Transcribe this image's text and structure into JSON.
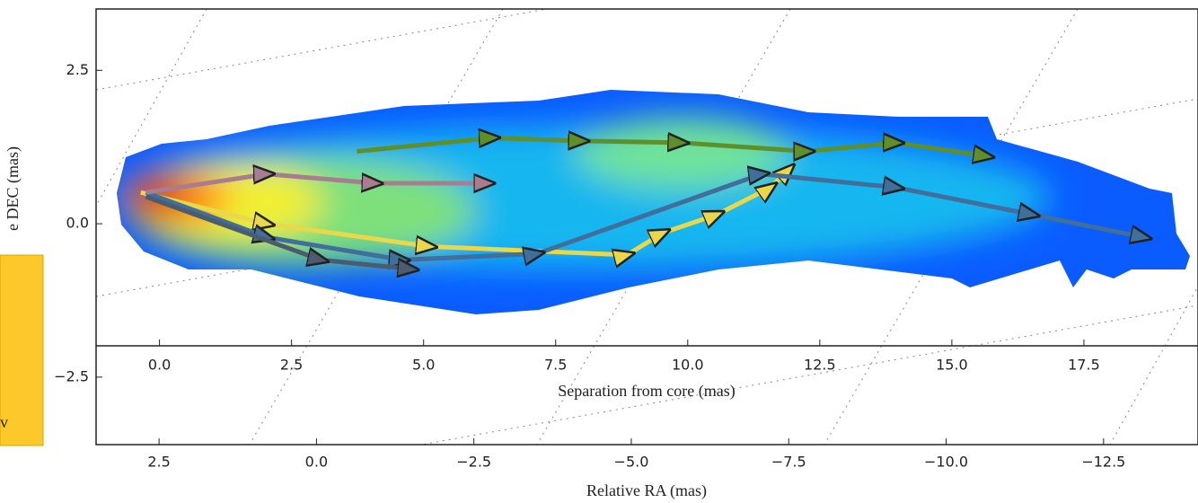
{
  "chart_data": {
    "type": "line",
    "xlabel": "Relative RA (mas)",
    "ylabel": "e DEC (mas)",
    "xlim": [
      3.5,
      -14
    ],
    "ylim": [
      -3.6,
      3.5
    ],
    "xticks": [
      2.5,
      {
        "value": 0,
        "label": "0.0"
      },
      {
        "value": -2.5,
        "label": "−2.5"
      },
      {
        "value": -5,
        "label": "−5.0"
      },
      {
        "value": -7.5,
        "label": "−7.5"
      },
      {
        "value": -10,
        "label": "−10.0"
      },
      {
        "value": -12.5,
        "label": "−12.5"
      }
    ],
    "yticks": [
      2.5,
      {
        "value": 0,
        "label": "0.0"
      },
      {
        "value": -2.5,
        "label": "−2.5"
      }
    ],
    "sep_label": "Separation from core (mas)",
    "sep_lim": [
      -1.2,
      19.66
    ],
    "sep_ticks": [
      {
        "value": 0,
        "label": "0.0"
      },
      2.5,
      {
        "value": 5,
        "label": "5.0"
      },
      7.5,
      {
        "value": 10,
        "label": "10.0"
      },
      12.5,
      {
        "value": 15,
        "label": "15.0"
      },
      17.5
    ],
    "series": [
      {
        "color": "#e8d84a",
        "x": [
          2.79,
          0.79,
          -1.79,
          -4.93,
          -5.5,
          -6.36,
          -7.21,
          -7.5
        ],
        "values": [
          0.51,
          0,
          -0.37,
          -0.51,
          -0.15,
          0.15,
          0.59,
          0.88
        ]
      },
      {
        "color": "#3f6f9a",
        "x": [
          2.71,
          0.79,
          -1.36,
          -3.5,
          -7.07,
          -9.21,
          -11.36,
          -13.14
        ],
        "values": [
          0.51,
          -0.22,
          -0.59,
          -0.49,
          0.81,
          0.59,
          0.15,
          -0.22
        ]
      },
      {
        "color": "#5f8f2a",
        "x": [
          -0.64,
          -2.79,
          -4.21,
          -5.79,
          -7.79,
          -9.21,
          -10.64
        ],
        "values": [
          1.18,
          1.4,
          1.35,
          1.32,
          1.18,
          1.32,
          1.1
        ]
      },
      {
        "color": "#a77d8f",
        "x": [
          2.71,
          0.79,
          -0.93,
          -2.71
        ],
        "values": [
          0.51,
          0.81,
          0.66,
          0.66
        ]
      },
      {
        "color": "#4a5c6e",
        "x": [
          2.71,
          -0.07,
          -1.5
        ],
        "values": [
          0.44,
          -0.59,
          -0.74
        ]
      }
    ]
  },
  "overlay": {
    "note": "v"
  }
}
